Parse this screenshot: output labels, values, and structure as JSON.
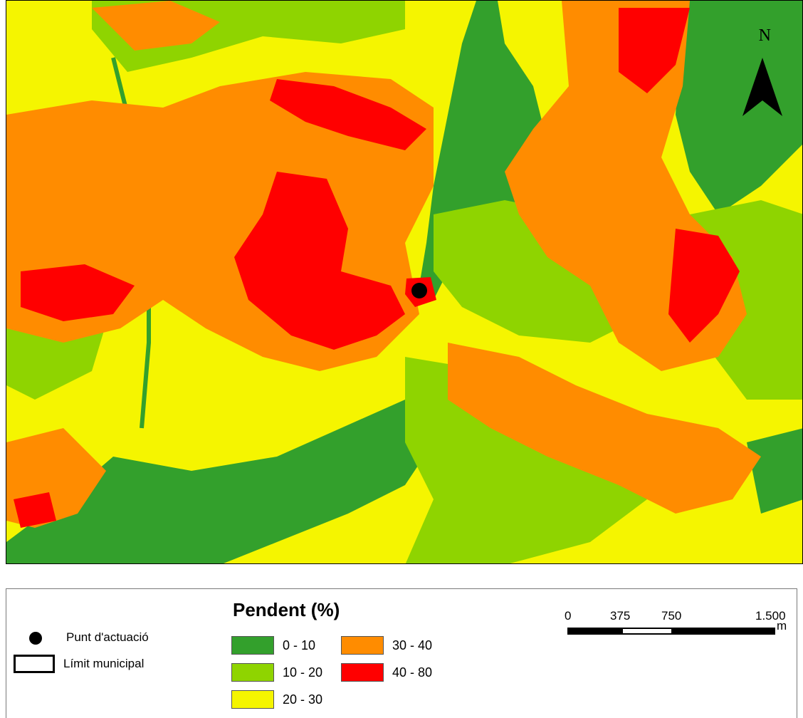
{
  "map": {
    "title": "",
    "north_label": "N",
    "colors": {
      "c0_10": "#33a02c",
      "c10_20": "#8fd400",
      "c20_30": "#f5f500",
      "c30_40": "#ff8c00",
      "c40_80": "#ff0000",
      "point": "#000000"
    },
    "icons": [
      "north-arrow-icon",
      "point-marker-icon"
    ]
  },
  "legend": {
    "title": "Pendent (%)",
    "classes": [
      {
        "label": "0 - 10",
        "color": "#33a02c"
      },
      {
        "label": "10 - 20",
        "color": "#8fd400"
      },
      {
        "label": "20 - 30",
        "color": "#f5f500"
      },
      {
        "label": "30 - 40",
        "color": "#ff8c00"
      },
      {
        "label": "40 - 80",
        "color": "#ff0000"
      }
    ],
    "punt_label": "Punt d'actuació",
    "limit_label": "Límit municipal"
  },
  "scalebar": {
    "ticks": [
      "0",
      "375",
      "750",
      "1.500"
    ],
    "unit": "m"
  }
}
